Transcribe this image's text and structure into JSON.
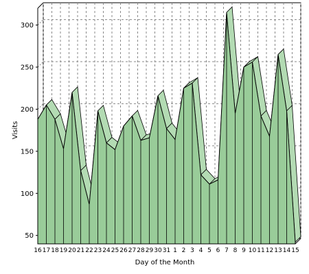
{
  "chart_data": {
    "type": "area",
    "title": "",
    "xlabel": "Day of the Month",
    "ylabel": "Visits",
    "categories": [
      "16",
      "17",
      "18",
      "19",
      "20",
      "21",
      "22",
      "23",
      "24",
      "25",
      "26",
      "27",
      "28",
      "29",
      "30",
      "31",
      "1",
      "2",
      "3",
      "4",
      "5",
      "6",
      "7",
      "8",
      "9",
      "10",
      "11",
      "12",
      "13",
      "14",
      "15"
    ],
    "series": [
      {
        "values": [
          188,
          205,
          188,
          153,
          220,
          127,
          87,
          198,
          160,
          152,
          180,
          192,
          163,
          166,
          216,
          177,
          164,
          225,
          231,
          122,
          111,
          116,
          315,
          195,
          250,
          256,
          192,
          168,
          265,
          198,
          42
        ]
      }
    ],
    "ylim": [
      40,
      320
    ],
    "yticks": [
      50,
      100,
      150,
      200,
      250,
      300
    ],
    "grid": true,
    "legend": "none",
    "colors": {
      "fill": "#99cc99",
      "fill_top": "#b3dbb3",
      "stroke": "#000000",
      "grid": "#888888",
      "axis": "#000000"
    }
  }
}
